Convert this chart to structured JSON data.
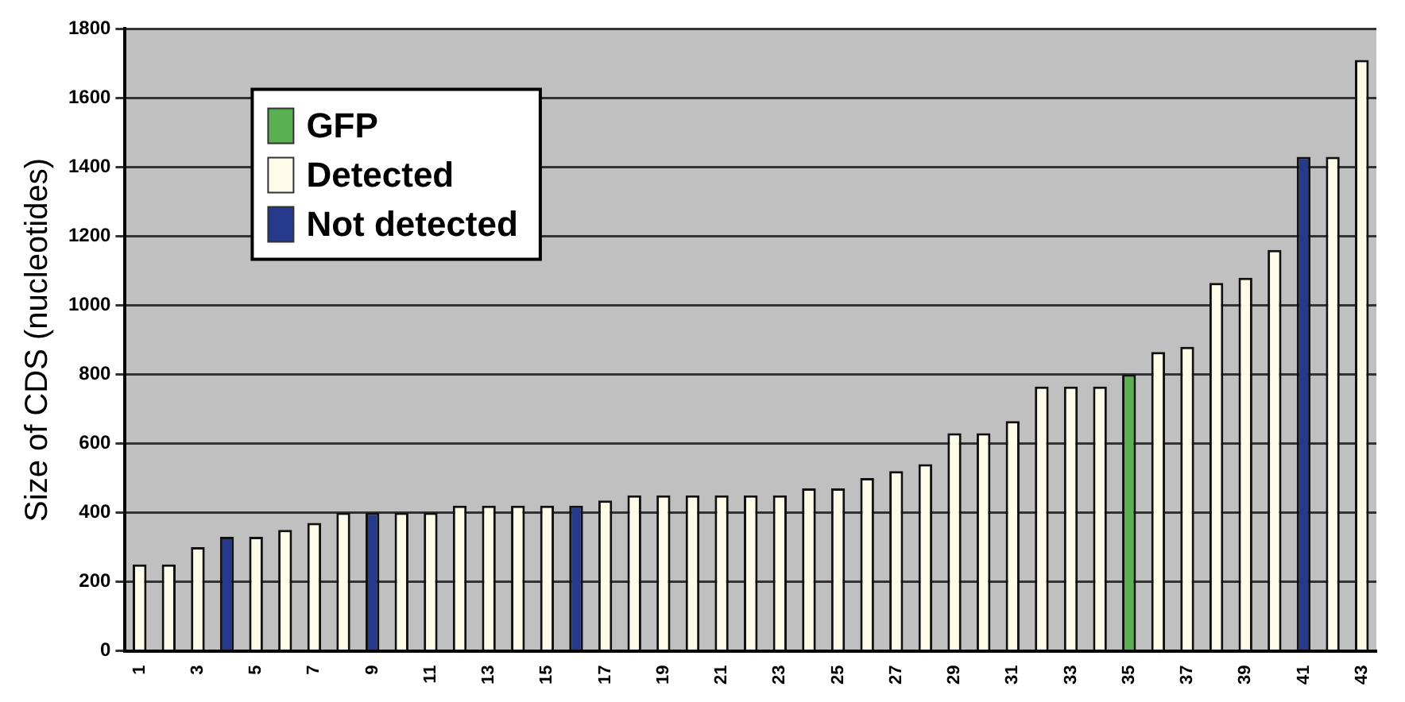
{
  "chart_data": {
    "type": "bar",
    "ylabel": "Size of CDS (nucleotides)",
    "categories": [
      "1",
      null,
      "3",
      null,
      "5",
      null,
      "7",
      null,
      "9",
      null,
      "11",
      null,
      "13",
      null,
      "15",
      null,
      "17",
      null,
      "19",
      null,
      "21",
      null,
      "23",
      null,
      "25",
      null,
      "27",
      null,
      "29",
      null,
      "31",
      null,
      "33",
      null,
      "35",
      null,
      "37",
      null,
      "39",
      null,
      "41",
      null,
      "43"
    ],
    "series": [
      {
        "name": "GFP",
        "color": "#5aaf50",
        "values": [
          null,
          null,
          null,
          null,
          null,
          null,
          null,
          null,
          null,
          null,
          null,
          null,
          null,
          null,
          null,
          null,
          null,
          null,
          null,
          null,
          null,
          null,
          null,
          null,
          null,
          null,
          null,
          null,
          null,
          null,
          null,
          null,
          null,
          null,
          800,
          null,
          null,
          null,
          null,
          null,
          null,
          null,
          null
        ]
      },
      {
        "name": "Detected",
        "color": "#fdfce8",
        "values": [
          250,
          250,
          300,
          null,
          330,
          350,
          370,
          400,
          null,
          400,
          400,
          420,
          420,
          420,
          420,
          null,
          435,
          450,
          450,
          450,
          450,
          450,
          450,
          470,
          470,
          500,
          520,
          540,
          630,
          630,
          665,
          765,
          765,
          765,
          null,
          865,
          880,
          1065,
          1080,
          1160,
          null,
          1430,
          1710
        ]
      },
      {
        "name": "Not detected",
        "color": "#27398a",
        "values": [
          null,
          null,
          null,
          330,
          null,
          null,
          null,
          null,
          400,
          null,
          null,
          null,
          null,
          null,
          null,
          420,
          null,
          null,
          null,
          null,
          null,
          null,
          null,
          null,
          null,
          null,
          null,
          null,
          null,
          null,
          null,
          null,
          null,
          null,
          null,
          null,
          null,
          null,
          null,
          null,
          1430,
          null,
          null
        ]
      }
    ],
    "ylim": [
      0,
      1800
    ],
    "yticks": [
      0,
      200,
      400,
      600,
      800,
      1000,
      1200,
      1400,
      1600,
      1800
    ],
    "grid": "y",
    "legend": "top left"
  }
}
